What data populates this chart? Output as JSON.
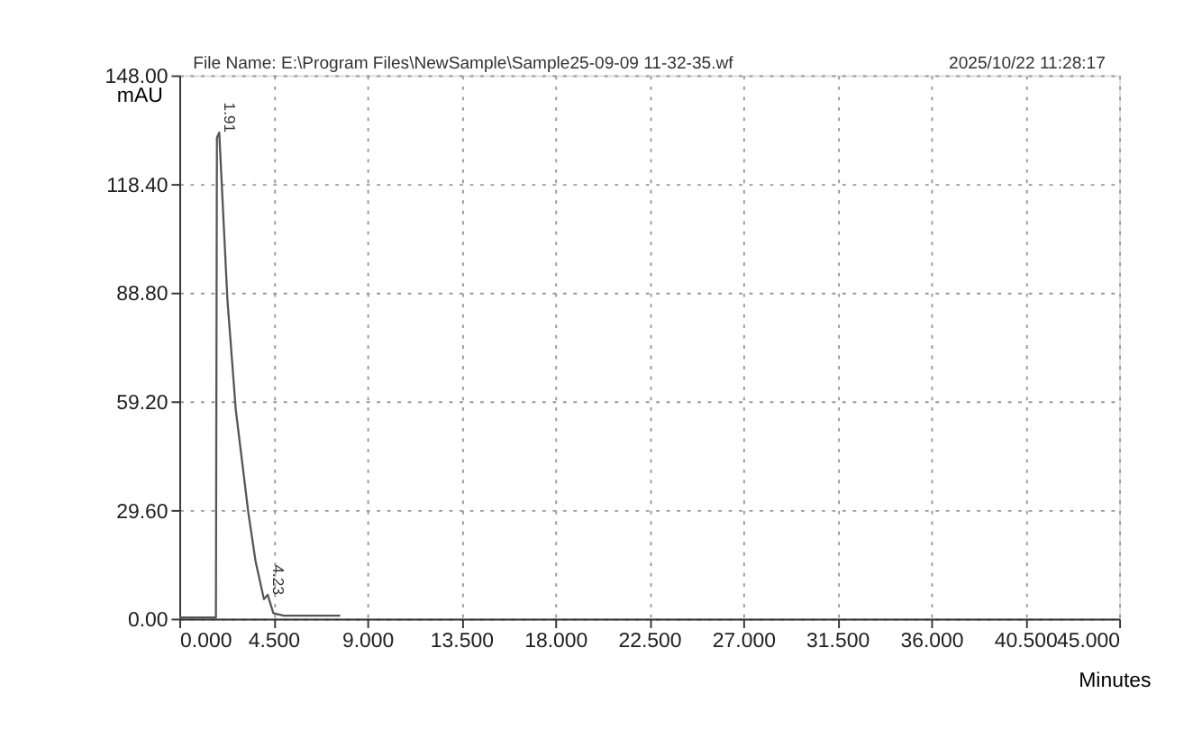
{
  "chart_data": {
    "type": "line",
    "xlabel": "Minutes",
    "ylabel": "mAU",
    "xlim": [
      0,
      45
    ],
    "ylim": [
      0,
      148
    ],
    "xticks": [
      {
        "value": 0,
        "label": "0.000"
      },
      {
        "value": 4.5,
        "label": "4.500"
      },
      {
        "value": 9,
        "label": "9.000"
      },
      {
        "value": 13.5,
        "label": "13.500"
      },
      {
        "value": 18,
        "label": "18.000"
      },
      {
        "value": 22.5,
        "label": "22.500"
      },
      {
        "value": 27,
        "label": "27.000"
      },
      {
        "value": 31.5,
        "label": "31.500"
      },
      {
        "value": 36,
        "label": "36.000"
      },
      {
        "value": 40.5,
        "label": "40.500"
      },
      {
        "value": 45,
        "label": "45.000"
      }
    ],
    "yticks": [
      {
        "value": 0,
        "label": "0.00"
      },
      {
        "value": 29.6,
        "label": "29.60"
      },
      {
        "value": 59.2,
        "label": "59.20"
      },
      {
        "value": 88.8,
        "label": "88.80"
      },
      {
        "value": 118.4,
        "label": "118.40"
      },
      {
        "value": 148,
        "label": "148.00"
      }
    ],
    "grid": true,
    "marker": "none",
    "line_style": "solid",
    "series": [
      {
        "color": "#555555",
        "x": [
          0,
          1.75,
          1.8,
          1.91,
          2.3,
          2.7,
          3.3,
          3.65,
          4.05,
          4.23,
          4.5,
          5.0,
          7.7
        ],
        "values": [
          0.3,
          0.3,
          131,
          132.4,
          87,
          57,
          29,
          15.6,
          5.3,
          6.5,
          1.5,
          0.8,
          0.8
        ]
      }
    ],
    "annotations": [
      "File Name: E:\\Program Files\\NewSample\\Sample25-09-09 11-32-35.wf",
      "2025/10/22 11:28:17",
      {
        "text": "1.91",
        "x": 1.91,
        "y": 132.4
      },
      {
        "text": "4.23",
        "x": 4.23,
        "y": 6.5
      }
    ]
  }
}
